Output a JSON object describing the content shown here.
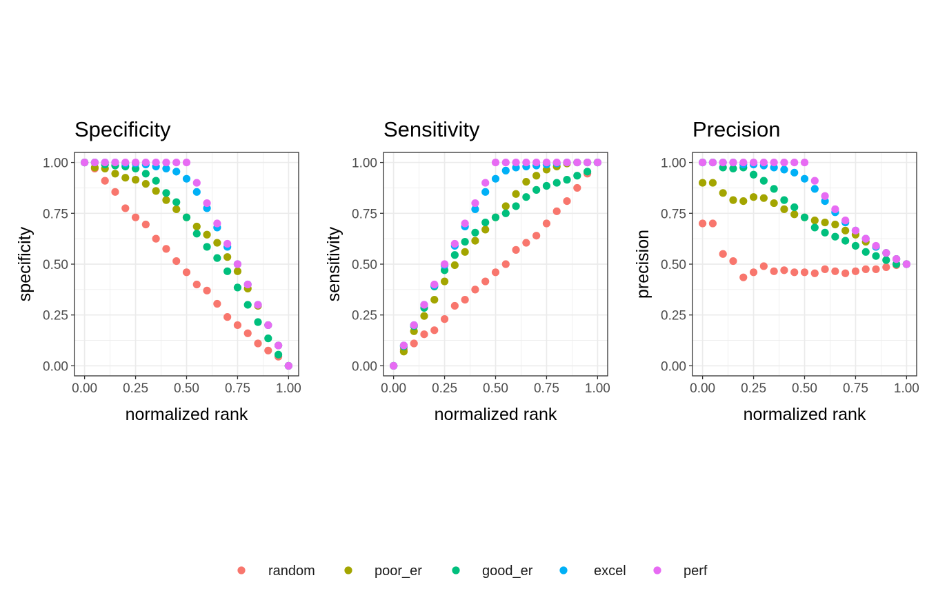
{
  "legend": [
    {
      "name": "random",
      "color": "#F8766D"
    },
    {
      "name": "poor_er",
      "color": "#A3A500"
    },
    {
      "name": "good_er",
      "color": "#00BF7D"
    },
    {
      "name": "excel",
      "color": "#00B0F6"
    },
    {
      "name": "perf",
      "color": "#E76BF3"
    }
  ],
  "chart_data": [
    {
      "type": "scatter",
      "title": "Specificity",
      "xlabel": "normalized rank",
      "ylabel": "specificity",
      "xlim": [
        0,
        1
      ],
      "ylim": [
        0,
        1
      ],
      "xticks": [
        "0.00",
        "0.25",
        "0.50",
        "0.75",
        "1.00"
      ],
      "yticks": [
        "0.00",
        "0.25",
        "0.50",
        "0.75",
        "1.00"
      ],
      "grid": true,
      "x": [
        0,
        0.05,
        0.1,
        0.15,
        0.2,
        0.25,
        0.3,
        0.35,
        0.4,
        0.45,
        0.5,
        0.55,
        0.6,
        0.65,
        0.7,
        0.75,
        0.8,
        0.85,
        0.9,
        0.95,
        1.0
      ],
      "series": [
        {
          "name": "random",
          "values": [
            1.0,
            0.97,
            0.91,
            0.855,
            0.775,
            0.73,
            0.695,
            0.625,
            0.575,
            0.515,
            0.46,
            0.4,
            0.37,
            0.305,
            0.24,
            0.2,
            0.16,
            0.11,
            0.075,
            0.045,
            0.0
          ]
        },
        {
          "name": "poor_er",
          "values": [
            1.0,
            0.975,
            0.97,
            0.945,
            0.925,
            0.915,
            0.895,
            0.86,
            0.815,
            0.77,
            0.73,
            0.685,
            0.645,
            0.605,
            0.535,
            0.465,
            0.38,
            0.295,
            0.2,
            0.1,
            0.0
          ]
        },
        {
          "name": "good_er",
          "values": [
            1.0,
            1.0,
            0.99,
            0.985,
            0.98,
            0.97,
            0.945,
            0.91,
            0.85,
            0.805,
            0.73,
            0.65,
            0.585,
            0.53,
            0.465,
            0.385,
            0.3,
            0.215,
            0.135,
            0.055,
            0.0
          ]
        },
        {
          "name": "excel",
          "values": [
            1.0,
            1.0,
            1.0,
            1.0,
            0.995,
            0.995,
            0.99,
            0.98,
            0.97,
            0.955,
            0.92,
            0.855,
            0.775,
            0.68,
            0.585,
            0.5,
            0.4,
            0.3,
            0.2,
            0.1,
            0.0
          ]
        },
        {
          "name": "perf",
          "values": [
            1.0,
            1.0,
            1.0,
            1.0,
            1.0,
            1.0,
            1.0,
            1.0,
            1.0,
            1.0,
            1.0,
            0.9,
            0.8,
            0.7,
            0.6,
            0.5,
            0.4,
            0.3,
            0.2,
            0.1,
            0.0
          ]
        }
      ]
    },
    {
      "type": "scatter",
      "title": "Sensitivity",
      "xlabel": "normalized rank",
      "ylabel": "sensitivity",
      "xlim": [
        0,
        1
      ],
      "ylim": [
        0,
        1
      ],
      "xticks": [
        "0.00",
        "0.25",
        "0.50",
        "0.75",
        "1.00"
      ],
      "yticks": [
        "0.00",
        "0.25",
        "0.50",
        "0.75",
        "1.00"
      ],
      "grid": true,
      "x": [
        0,
        0.05,
        0.1,
        0.15,
        0.2,
        0.25,
        0.3,
        0.35,
        0.4,
        0.45,
        0.5,
        0.55,
        0.6,
        0.65,
        0.7,
        0.75,
        0.8,
        0.85,
        0.9,
        0.95,
        1.0
      ],
      "series": [
        {
          "name": "random",
          "values": [
            0.0,
            0.08,
            0.11,
            0.155,
            0.175,
            0.23,
            0.295,
            0.325,
            0.375,
            0.415,
            0.46,
            0.5,
            0.57,
            0.605,
            0.64,
            0.7,
            0.76,
            0.81,
            0.875,
            0.945,
            1.0
          ]
        },
        {
          "name": "poor_er",
          "values": [
            0.0,
            0.07,
            0.17,
            0.245,
            0.325,
            0.415,
            0.495,
            0.56,
            0.615,
            0.67,
            0.73,
            0.785,
            0.845,
            0.905,
            0.935,
            0.965,
            0.98,
            0.995,
            1.0,
            1.0,
            1.0
          ]
        },
        {
          "name": "good_er",
          "values": [
            0.0,
            0.095,
            0.195,
            0.285,
            0.39,
            0.47,
            0.545,
            0.61,
            0.655,
            0.705,
            0.73,
            0.75,
            0.785,
            0.83,
            0.865,
            0.885,
            0.9,
            0.915,
            0.935,
            0.955,
            1.0
          ]
        },
        {
          "name": "excel",
          "values": [
            0.0,
            0.1,
            0.2,
            0.3,
            0.395,
            0.495,
            0.59,
            0.685,
            0.77,
            0.855,
            0.92,
            0.96,
            0.975,
            0.98,
            0.985,
            0.99,
            0.995,
            1.0,
            1.0,
            1.0,
            1.0
          ]
        },
        {
          "name": "perf",
          "values": [
            0.0,
            0.1,
            0.2,
            0.3,
            0.4,
            0.5,
            0.6,
            0.7,
            0.8,
            0.9,
            1.0,
            1.0,
            1.0,
            1.0,
            1.0,
            1.0,
            1.0,
            1.0,
            1.0,
            1.0,
            1.0
          ]
        }
      ]
    },
    {
      "type": "scatter",
      "title": "Precision",
      "xlabel": "normalized rank",
      "ylabel": "precision",
      "xlim": [
        0,
        1
      ],
      "ylim": [
        0,
        1
      ],
      "xticks": [
        "0.00",
        "0.25",
        "0.50",
        "0.75",
        "1.00"
      ],
      "yticks": [
        "0.00",
        "0.25",
        "0.50",
        "0.75",
        "1.00"
      ],
      "grid": true,
      "x": [
        0,
        0.05,
        0.1,
        0.15,
        0.2,
        0.25,
        0.3,
        0.35,
        0.4,
        0.45,
        0.5,
        0.55,
        0.6,
        0.65,
        0.7,
        0.75,
        0.8,
        0.85,
        0.9,
        0.95,
        1.0
      ],
      "series": [
        {
          "name": "random",
          "values": [
            0.7,
            0.7,
            0.55,
            0.515,
            0.435,
            0.46,
            0.49,
            0.465,
            0.47,
            0.46,
            0.46,
            0.455,
            0.475,
            0.465,
            0.455,
            0.465,
            0.475,
            0.475,
            0.485,
            0.495,
            0.5
          ]
        },
        {
          "name": "poor_er",
          "values": [
            0.9,
            0.9,
            0.85,
            0.815,
            0.81,
            0.83,
            0.825,
            0.8,
            0.77,
            0.745,
            0.73,
            0.715,
            0.705,
            0.695,
            0.665,
            0.645,
            0.61,
            0.585,
            0.555,
            0.525,
            0.5
          ]
        },
        {
          "name": "good_er",
          "values": [
            1.0,
            1.0,
            0.975,
            0.97,
            0.975,
            0.94,
            0.91,
            0.87,
            0.815,
            0.78,
            0.73,
            0.68,
            0.655,
            0.635,
            0.615,
            0.59,
            0.56,
            0.54,
            0.52,
            0.5,
            0.5
          ]
        },
        {
          "name": "excel",
          "values": [
            1.0,
            1.0,
            1.0,
            1.0,
            0.99,
            0.99,
            0.985,
            0.975,
            0.965,
            0.95,
            0.92,
            0.87,
            0.81,
            0.755,
            0.705,
            0.665,
            0.625,
            0.585,
            0.555,
            0.525,
            0.5
          ]
        },
        {
          "name": "perf",
          "values": [
            1.0,
            1.0,
            1.0,
            1.0,
            1.0,
            1.0,
            1.0,
            1.0,
            1.0,
            1.0,
            1.0,
            0.91,
            0.835,
            0.77,
            0.715,
            0.665,
            0.625,
            0.59,
            0.555,
            0.525,
            0.5
          ]
        }
      ]
    }
  ]
}
